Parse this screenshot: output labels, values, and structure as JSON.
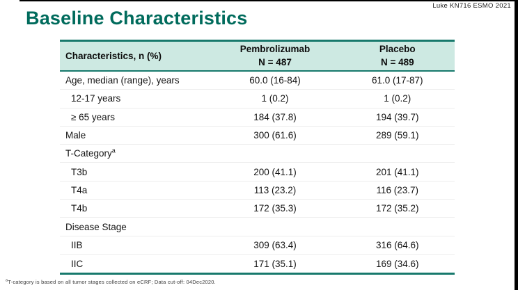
{
  "slide": {
    "attribution": "Luke KN716 ESMO 2021",
    "title": "Baseline Characteristics",
    "footnote_sup": "a",
    "footnote_text": "T-category is based on all tumor stages collected on eCRF;  Data cut-off: 04Dec2020."
  },
  "colors": {
    "title_teal": "#006B5C",
    "border_teal": "#17796C",
    "header_bg": "#CDE9E2",
    "edge_black": "#000000"
  },
  "table": {
    "header": {
      "col1": "Characteristics, n (%)",
      "col2_line1": "Pembrolizumab",
      "col2_line2": "N = 487",
      "col3_line1": "Placebo",
      "col3_line2": "N = 489"
    },
    "rows": [
      {
        "label": "Age, median (range), years",
        "pembrolizumab": "60.0 (16-84)",
        "placebo": "61.0 (17-87)"
      },
      {
        "label": "12-17 years",
        "pembrolizumab": "1 (0.2)",
        "placebo": "1 (0.2)"
      },
      {
        "label": "≥ 65 years",
        "pembrolizumab": "184 (37.8)",
        "placebo": "194 (39.7)"
      },
      {
        "label": "Male",
        "pembrolizumab": "300 (61.6)",
        "placebo": "289 (59.1)"
      },
      {
        "label": "T-Category",
        "sup": "a",
        "pembrolizumab": "",
        "placebo": ""
      },
      {
        "label": "T3b",
        "pembrolizumab": "200 (41.1)",
        "placebo": "201 (41.1)"
      },
      {
        "label": "T4a",
        "pembrolizumab": "113 (23.2)",
        "placebo": "116 (23.7)"
      },
      {
        "label": "T4b",
        "pembrolizumab": "172 (35.3)",
        "placebo": "172 (35.2)"
      },
      {
        "label": "Disease Stage",
        "pembrolizumab": "",
        "placebo": ""
      },
      {
        "label": "IIB",
        "pembrolizumab": "309 (63.4)",
        "placebo": "316 (64.6)"
      },
      {
        "label": "IIC",
        "pembrolizumab": "171 (35.1)",
        "placebo": "169 (34.6)"
      }
    ]
  }
}
